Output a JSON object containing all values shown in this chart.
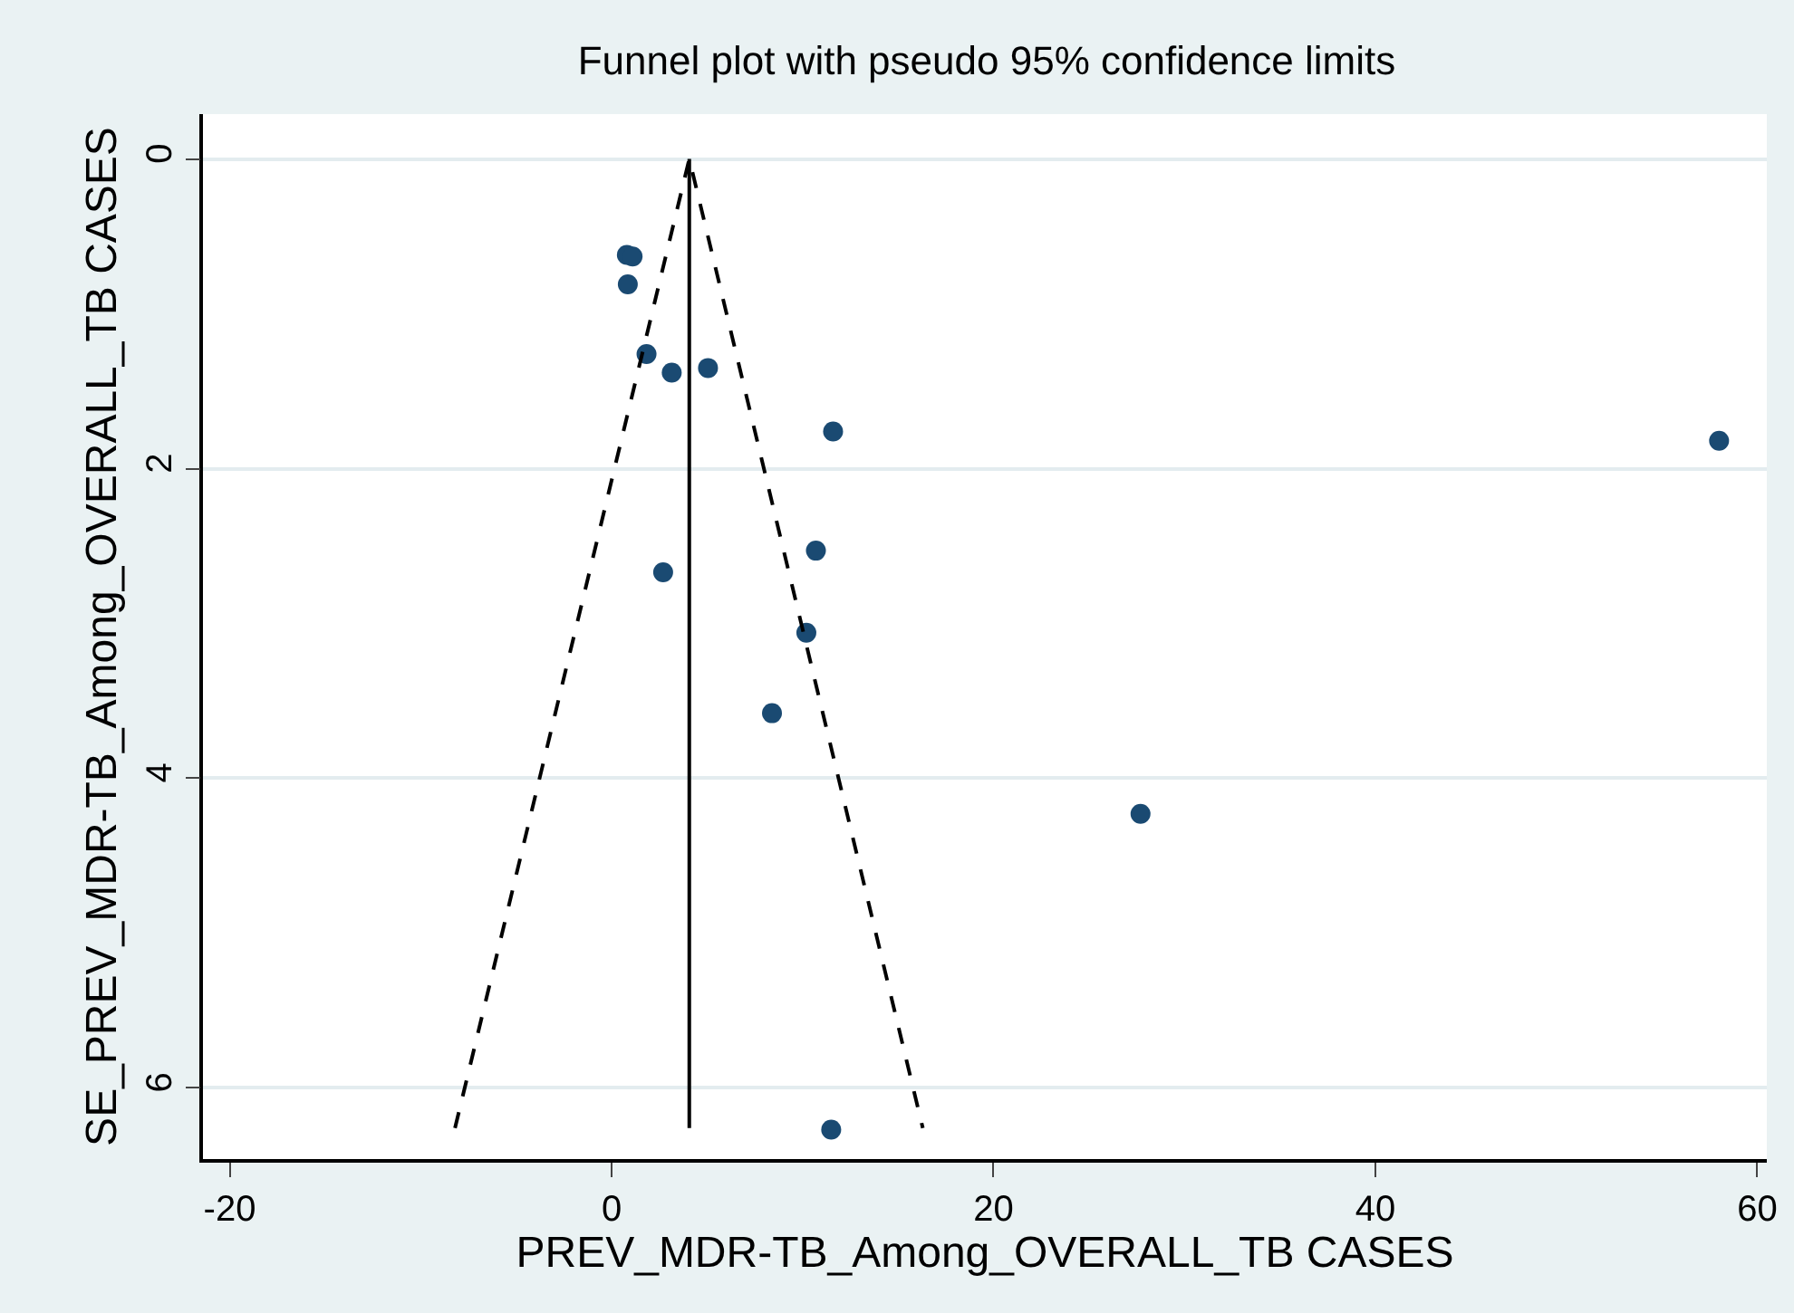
{
  "chart_data": {
    "type": "scatter",
    "title": "Funnel plot with pseudo 95% confidence limits",
    "xlabel": "PREV_MDR-TB_Among_OVERALL_TB CASES",
    "ylabel": "SE_PREV_MDR-TB_Among_OVERALL_TB CASES",
    "xlim": [
      -21.4,
      60.5
    ],
    "xticks": [
      -20,
      0,
      20,
      40,
      60
    ],
    "ylim": [
      6.46,
      -0.29
    ],
    "yticks": [
      0,
      2,
      4,
      6
    ],
    "grid": "y",
    "series": [
      {
        "color": "#1a4a72",
        "marker": "circle",
        "x": [
          0.8,
          1.1,
          0.85,
          1.83,
          3.15,
          5.05,
          11.6,
          58.0,
          10.7,
          2.7,
          10.2,
          8.4,
          27.7,
          11.5
        ],
        "values": [
          0.62,
          0.63,
          0.81,
          1.26,
          1.38,
          1.35,
          1.76,
          1.82,
          2.53,
          2.67,
          3.06,
          3.58,
          4.23,
          6.27
        ]
      },
      {
        "type": "line",
        "color": "#000000",
        "line_style": "dashed",
        "marker": "none",
        "x": [
          -8.2,
          4.07,
          16.3
        ],
        "values": [
          6.26,
          0,
          6.26
        ]
      },
      {
        "type": "line",
        "color": "#000000",
        "line_style": "solid",
        "marker": "none",
        "x": [
          4.07,
          4.07
        ],
        "values": [
          0,
          6.26
        ]
      }
    ]
  }
}
